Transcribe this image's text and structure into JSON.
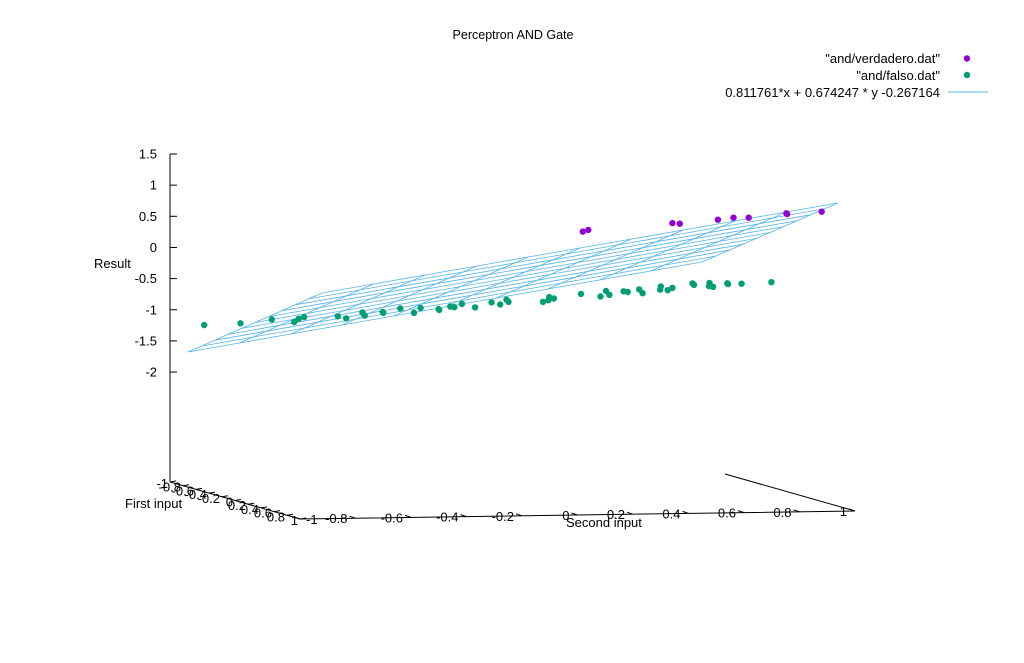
{
  "chart_data": {
    "type": "scatter",
    "subtype": "3d-scatter-with-plane",
    "title": "Perceptron AND Gate",
    "xlabel": "First input",
    "ylabel": "Second input",
    "zlabel": "Result",
    "xlim": [
      -1,
      1
    ],
    "ylim": [
      -1,
      1
    ],
    "zlim": [
      -2,
      1.5
    ],
    "x_ticks": [
      "-1",
      "-0.8",
      "-0.6",
      "-0.4",
      "-0.2",
      "0",
      "0.2",
      "0.4",
      "0.6",
      "0.8",
      "1"
    ],
    "y_ticks": [
      "-1",
      "-0.8",
      "-0.6",
      "-0.4",
      "-0.2",
      "0",
      "0.2",
      "0.4",
      "0.6",
      "0.8",
      "1"
    ],
    "z_ticks": [
      "1.5",
      "1",
      "0.5",
      "0",
      "-0.5",
      "-1",
      "-1.5",
      "-2"
    ],
    "legend_position": "top-right",
    "grid": false,
    "colors": {
      "verdadero": "#9400d3",
      "falso": "#009e73",
      "plane": "#56b4e9"
    },
    "series": [
      {
        "name": "\"and/verdadero.dat\"",
        "kind": "points",
        "points": [
          [
            0.55,
            0.15,
            1
          ],
          [
            0.85,
            0.05,
            1
          ],
          [
            0.65,
            0.45,
            1
          ],
          [
            0.95,
            0.4,
            1
          ],
          [
            0.75,
            0.6,
            1
          ],
          [
            0.6,
            0.7,
            1
          ],
          [
            0.9,
            0.68,
            1
          ],
          [
            0.82,
            0.85,
            1
          ],
          [
            0.62,
            0.9,
            1
          ],
          [
            0.95,
            0.95,
            1
          ]
        ]
      },
      {
        "name": "\"and/falso.dat\"",
        "kind": "points",
        "points": [
          [
            -0.95,
            -0.95,
            -1
          ],
          [
            -0.6,
            -0.9,
            -1
          ],
          [
            -0.9,
            -0.7,
            -1
          ],
          [
            -0.5,
            -0.7,
            -1
          ],
          [
            -0.8,
            -0.6,
            -1
          ],
          [
            -0.3,
            -0.6,
            -1
          ],
          [
            -0.7,
            -0.4,
            -1
          ],
          [
            -0.4,
            -0.4,
            -1
          ],
          [
            -0.2,
            -0.45,
            -1
          ],
          [
            -0.9,
            -0.2,
            -1
          ],
          [
            -0.6,
            -0.2,
            -1
          ],
          [
            -0.35,
            -0.15,
            -1
          ],
          [
            -0.1,
            -0.2,
            -1
          ],
          [
            -0.75,
            0.0,
            -1
          ],
          [
            -0.5,
            0.05,
            -1
          ],
          [
            -0.25,
            0.05,
            -1
          ],
          [
            -0.85,
            0.2,
            -1
          ],
          [
            -0.6,
            0.3,
            -1
          ],
          [
            -0.4,
            0.25,
            -1
          ],
          [
            -0.15,
            0.2,
            -1
          ],
          [
            -0.7,
            0.45,
            -1
          ],
          [
            -0.45,
            0.55,
            -1
          ],
          [
            -0.2,
            0.5,
            -1
          ],
          [
            -0.9,
            0.6,
            -1
          ],
          [
            -0.6,
            0.65,
            -1
          ],
          [
            -0.3,
            0.7,
            -1
          ],
          [
            -0.1,
            0.6,
            -1
          ],
          [
            -0.85,
            0.8,
            -1
          ],
          [
            -0.55,
            0.85,
            -1
          ],
          [
            -0.25,
            0.9,
            -1
          ],
          [
            -0.05,
            0.85,
            -1
          ],
          [
            0.05,
            0.75,
            -1
          ],
          [
            -0.95,
            0.95,
            -1
          ],
          [
            -0.7,
            0.95,
            -1
          ],
          [
            0.2,
            -0.9,
            -1
          ],
          [
            0.4,
            -0.75,
            -1
          ],
          [
            0.1,
            -0.6,
            -1
          ],
          [
            0.45,
            -0.5,
            -1
          ],
          [
            0.25,
            -0.35,
            -1
          ],
          [
            0.05,
            -0.3,
            -1
          ],
          [
            0.4,
            -0.25,
            -1
          ],
          [
            0.2,
            -0.1,
            -1
          ],
          [
            0.45,
            0.0,
            -1
          ],
          [
            0.15,
            0.1,
            -1
          ],
          [
            0.35,
            0.25,
            -1
          ],
          [
            0.1,
            0.35,
            -1
          ],
          [
            0.4,
            0.4,
            -1
          ],
          [
            0.2,
            0.55,
            -1
          ],
          [
            0.3,
            0.7,
            -1
          ],
          [
            0.15,
            0.85,
            -1
          ],
          [
            0.4,
            0.9,
            -1
          ]
        ]
      },
      {
        "name": "0.811761*x + 0.674247 * y -0.267164",
        "kind": "plane",
        "coefficients": {
          "x": 0.811761,
          "y": 0.674247,
          "c": -0.267164
        }
      }
    ]
  }
}
